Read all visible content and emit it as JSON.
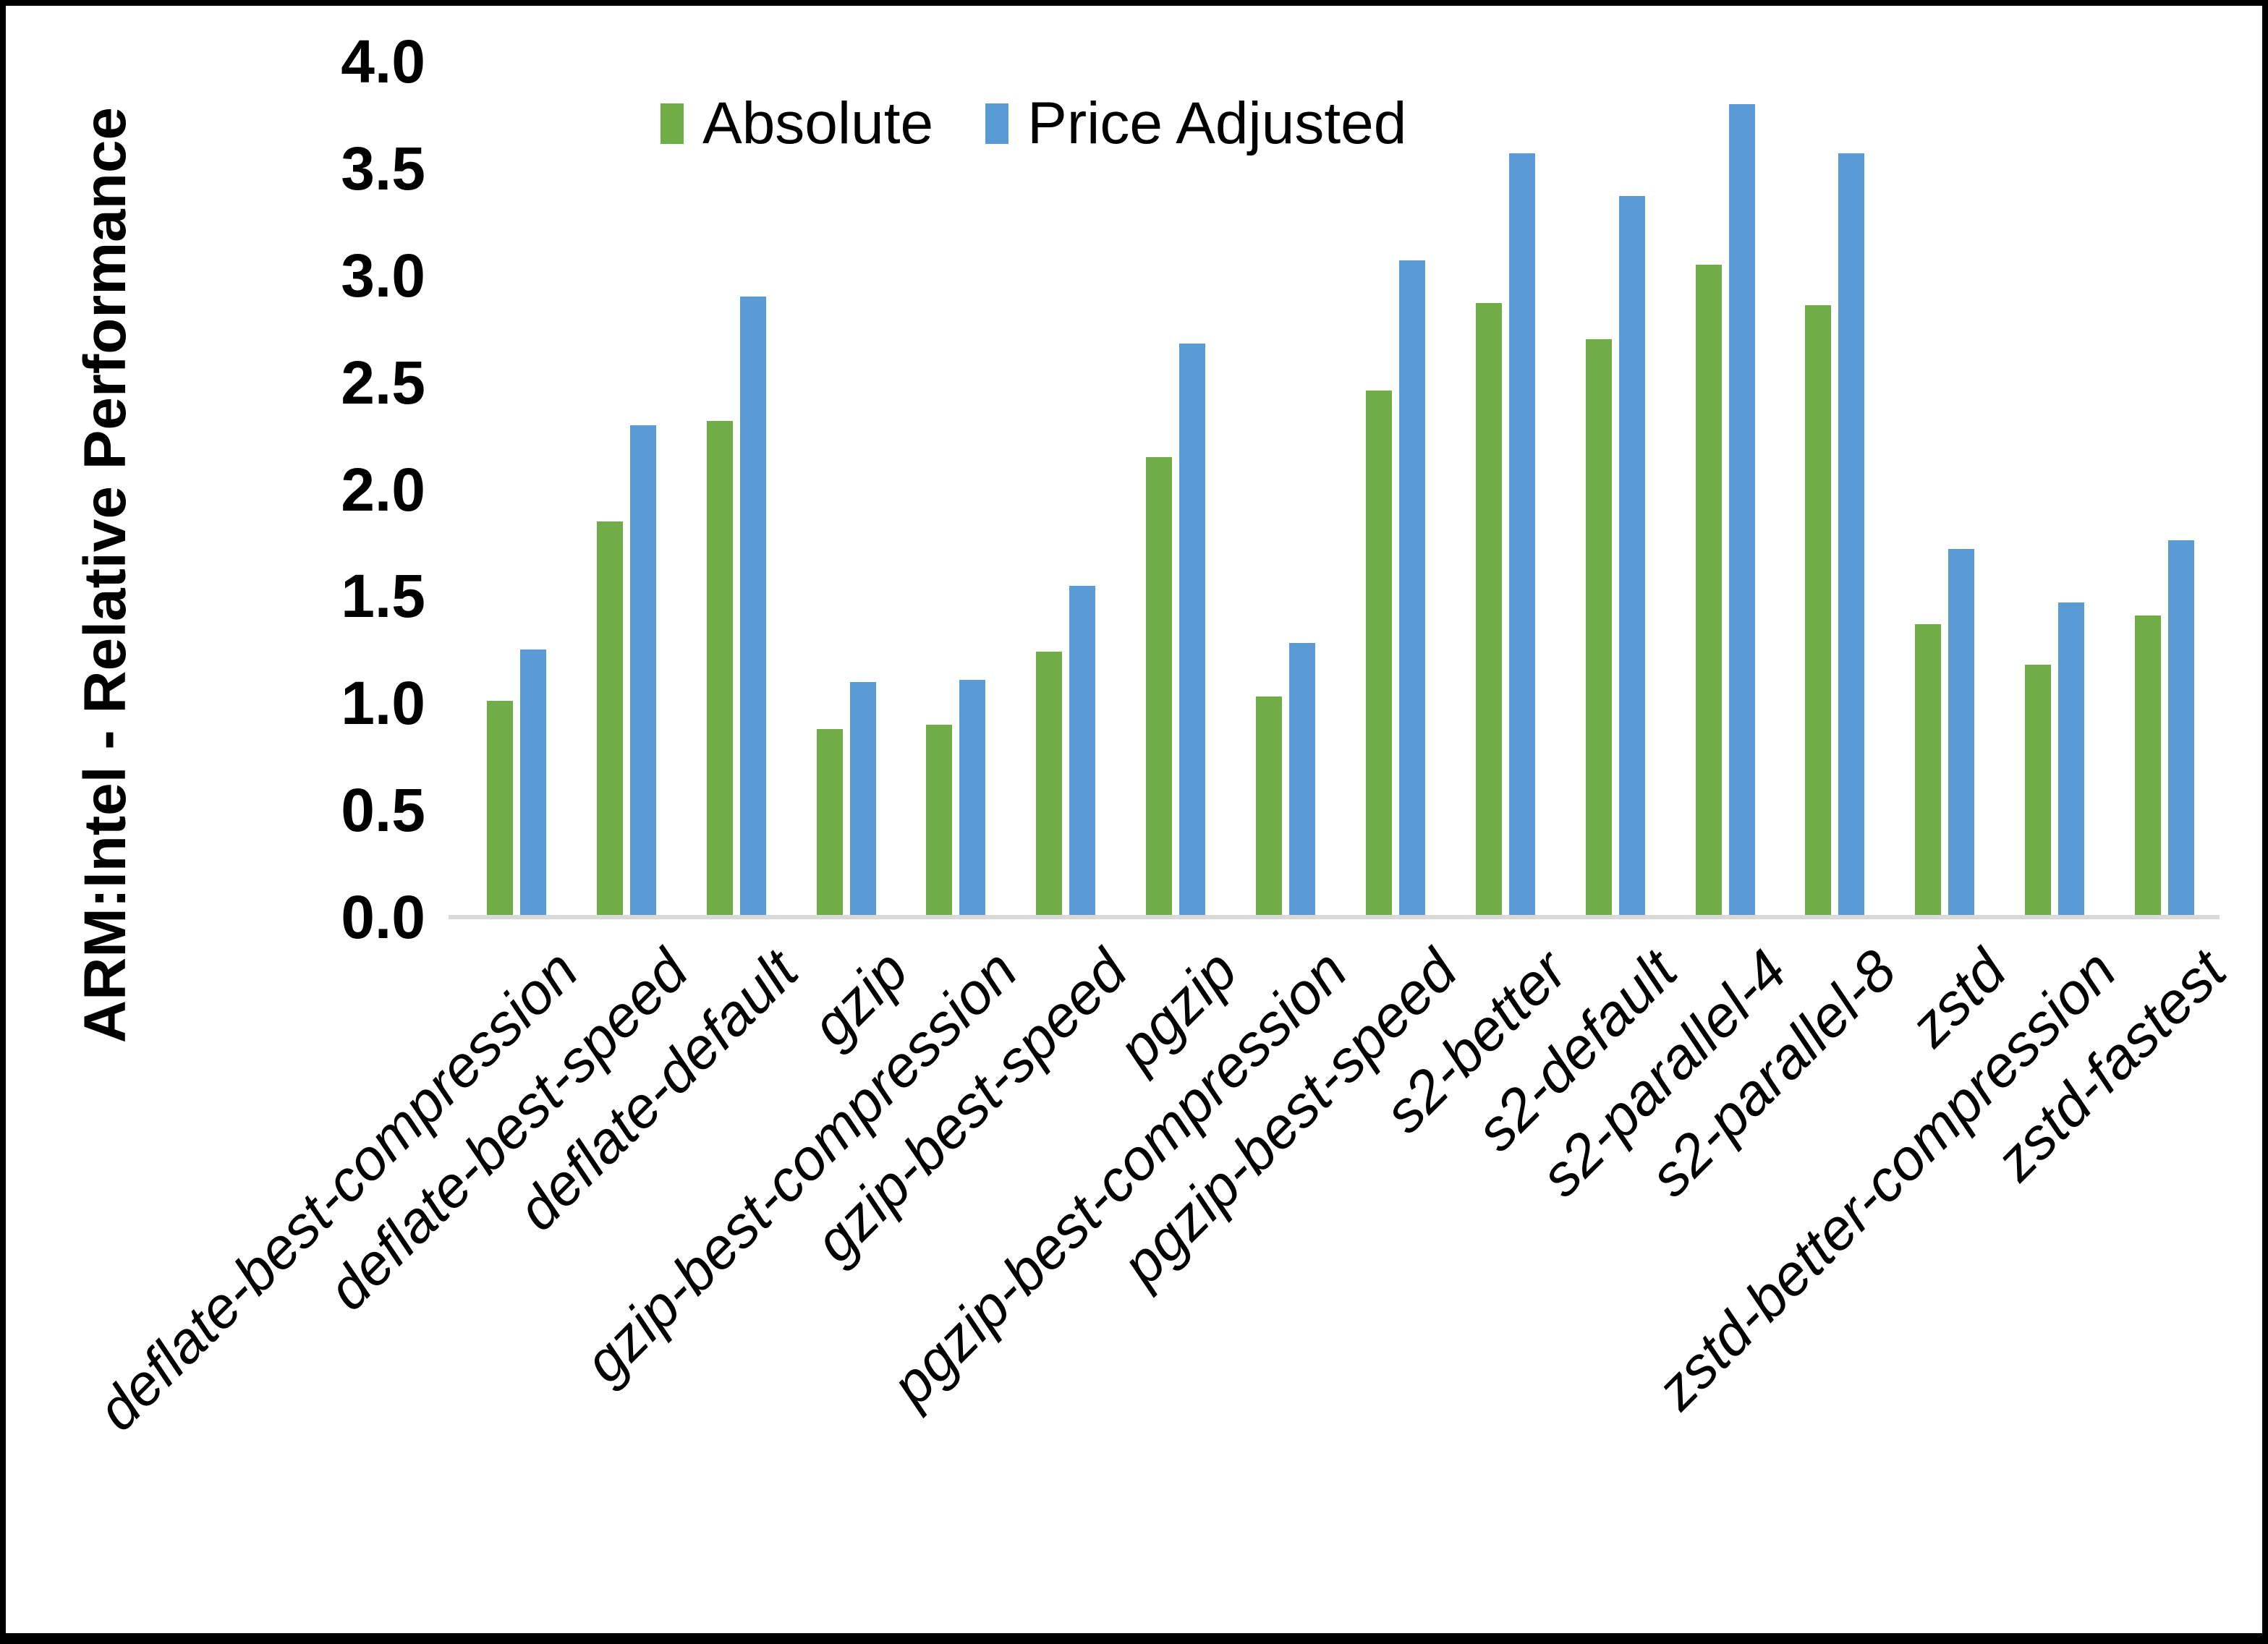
{
  "chart_data": {
    "type": "bar",
    "title": "",
    "ylabel": "ARM:Intel - Relative Performance",
    "xlabel": "",
    "ylim": [
      0.0,
      4.0
    ],
    "ytick_labels": [
      "4.0",
      "3.5",
      "3.0",
      "2.5",
      "2.0",
      "1.5",
      "1.0",
      "0.5",
      "0.0"
    ],
    "grid": false,
    "legend_position": "top-center-inside",
    "categories": [
      "deflate-best-compression",
      "deflate-best-speed",
      "deflate-default",
      "gzip",
      "gzip-best-compression",
      "gzip-best-speed",
      "pgzip",
      "pgzip-best-compression",
      "pgzip-best-speed",
      "s2-better",
      "s2-default",
      "s2-parallel-4",
      "s2-parallel-8",
      "zstd",
      "zstd-better-compression",
      "zstd-fastest"
    ],
    "series": [
      {
        "name": "Absolute",
        "color": "#70AD47",
        "values": [
          1.01,
          1.85,
          2.32,
          0.88,
          0.9,
          1.24,
          2.15,
          1.03,
          2.46,
          2.87,
          2.7,
          3.05,
          2.86,
          1.37,
          1.18,
          1.41
        ]
      },
      {
        "name": "Price Adjusted",
        "color": "#5B9BD5",
        "values": [
          1.25,
          2.3,
          2.9,
          1.1,
          1.11,
          1.55,
          2.68,
          1.28,
          3.07,
          3.57,
          3.37,
          3.8,
          3.57,
          1.72,
          1.47,
          1.76
        ]
      }
    ]
  },
  "colors": {
    "axis_line": "#D9D9D9",
    "frame_border": "#000000",
    "background": "#FFFFFF",
    "text": "#000000"
  }
}
